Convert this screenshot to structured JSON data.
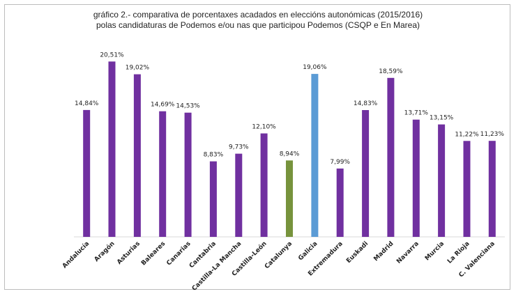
{
  "chart_data": {
    "type": "bar",
    "title": "gráfico 2.- comparativa de porcentaxes acadados en eleccións autonómicas (2015/2016)",
    "subtitle": "polas candidaturas de Podemos e/ou nas que participou Podemos (CSQP e En Marea)",
    "xlabel": "",
    "ylabel": "",
    "ylim": [
      0,
      22
    ],
    "grid": false,
    "legend": "none",
    "categories": [
      "Andalucía",
      "Aragón",
      "Asturias",
      "Baleares",
      "Canarias",
      "Cantabria",
      "Castilla-La Mancha",
      "Castilla-León",
      "Catalunya",
      "Galicia",
      "Extremadura",
      "Euskadi",
      "Madrid",
      "Navarra",
      "Murcia",
      "La Rioja",
      "C. Valenciana"
    ],
    "values": [
      14.84,
      20.51,
      19.02,
      14.69,
      14.53,
      8.83,
      9.73,
      12.1,
      8.94,
      19.06,
      7.99,
      14.83,
      18.59,
      13.71,
      13.15,
      11.22,
      11.23
    ],
    "labels": [
      "14,84%",
      "20,51%",
      "19,02%",
      "14,69%",
      "14,53%",
      "8,83%",
      "9,73%",
      "12,10%",
      "8,94%",
      "19,06%",
      "7,99%",
      "14,83%",
      "18,59%",
      "13,71%",
      "13,15%",
      "11,22%",
      "11,23%"
    ],
    "colors": [
      "#7030a0",
      "#7030a0",
      "#7030a0",
      "#7030a0",
      "#7030a0",
      "#7030a0",
      "#7030a0",
      "#7030a0",
      "#77933c",
      "#5b9bd5",
      "#7030a0",
      "#7030a0",
      "#7030a0",
      "#7030a0",
      "#7030a0",
      "#7030a0",
      "#7030a0"
    ]
  }
}
